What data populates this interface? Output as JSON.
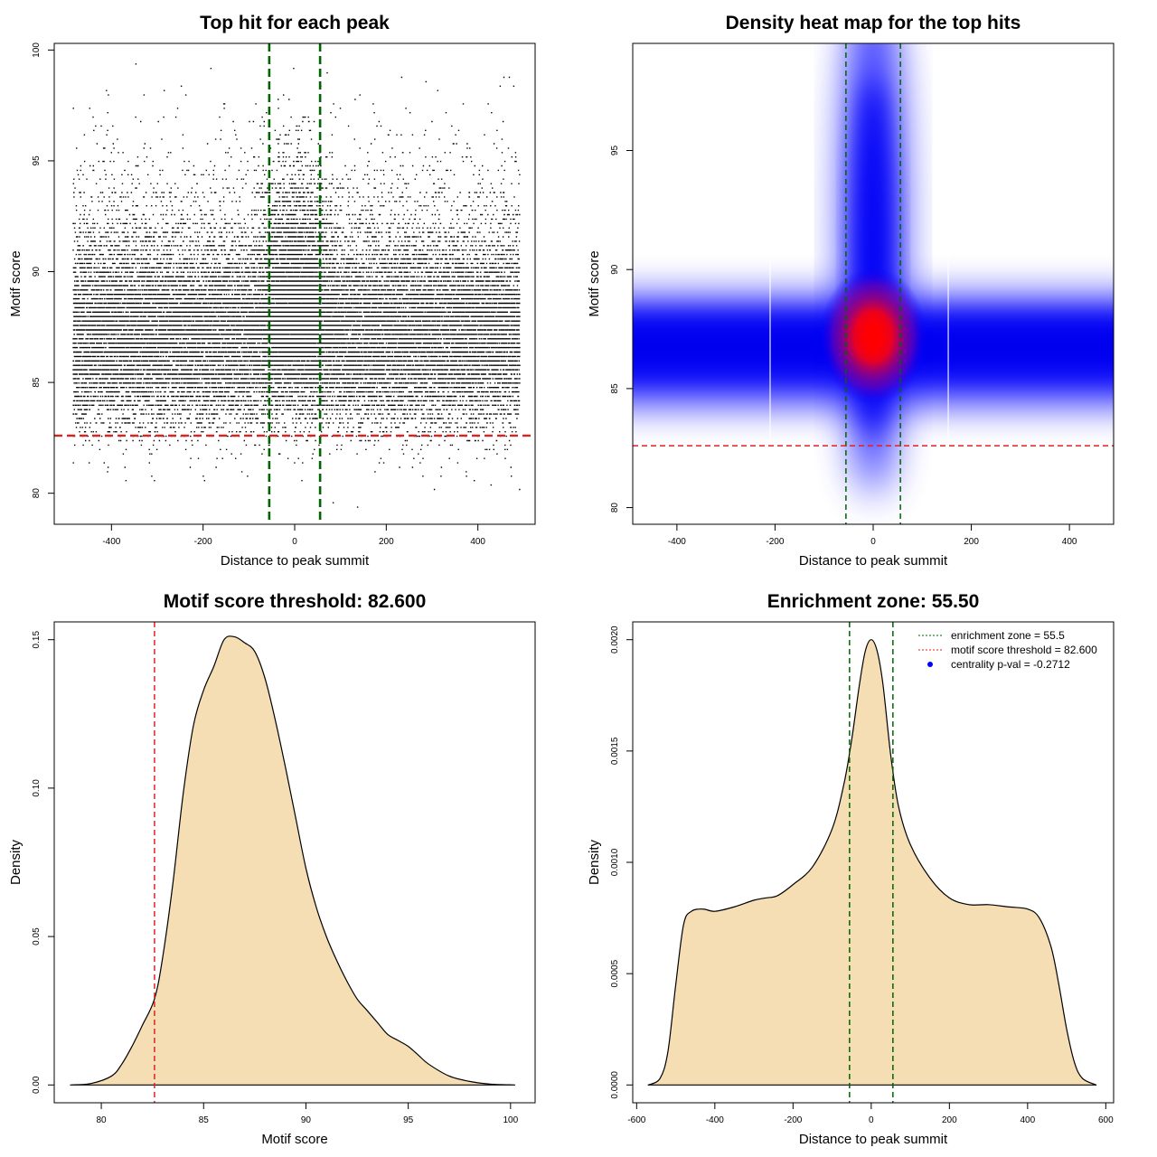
{
  "chart_data": [
    {
      "type": "scatter",
      "title": "Top hit for each peak",
      "xlabel": "Distance to peak summit",
      "ylabel": "Motif score",
      "xlim": [
        -525,
        525
      ],
      "ylim": [
        78.6,
        100.3
      ],
      "xticks": [
        -400,
        -200,
        0,
        200,
        400
      ],
      "yticks": [
        80,
        85,
        90,
        95,
        100
      ],
      "enrichment_zone": [
        -55.5,
        55.5
      ],
      "motif_threshold": 82.6,
      "points_approx": 30000,
      "colors": {
        "points": "#000000",
        "zone": "#006400",
        "threshold": "#dd2222"
      }
    },
    {
      "type": "heatmap",
      "title": "Density heat map for the top hits",
      "xlabel": "Distance to peak summit",
      "ylabel": "Motif score",
      "xlim": [
        -490,
        490
      ],
      "ylim": [
        79.3,
        99.5
      ],
      "xticks": [
        -400,
        -200,
        0,
        200,
        400
      ],
      "yticks": [
        80,
        85,
        90,
        95
      ],
      "enrichment_zone": [
        -55.5,
        55.5
      ],
      "motif_threshold": 82.6,
      "peak": {
        "x": 0,
        "y": 87.2
      },
      "colors": {
        "low": "#ffffff",
        "mid": "#0000ff",
        "high": "#ff0000"
      }
    },
    {
      "type": "area",
      "title": "Motif score threshold: 82.600",
      "xlabel": "Motif score",
      "ylabel": "Density",
      "xlim": [
        77.7,
        101.2
      ],
      "ylim": [
        -0.006,
        0.156
      ],
      "xticks": [
        80,
        85,
        90,
        95,
        100
      ],
      "yticks": [
        0.0,
        0.05,
        0.1,
        0.15
      ],
      "ytick_labels": [
        "0.00",
        "0.05",
        "0.10",
        "0.15"
      ],
      "threshold": 82.6,
      "x": [
        78.5,
        79.5,
        80.5,
        81.0,
        81.5,
        82.0,
        82.6,
        83.0,
        83.5,
        84.0,
        84.5,
        85.0,
        85.5,
        86.0,
        86.5,
        87.0,
        87.5,
        88.0,
        88.5,
        89.0,
        89.5,
        90.0,
        90.5,
        91.0,
        91.5,
        92.0,
        92.5,
        93.0,
        93.5,
        94.0,
        94.5,
        95.0,
        95.5,
        96.0,
        97.0,
        98.0,
        99.0,
        100.2
      ],
      "values": [
        0.0,
        0.0005,
        0.003,
        0.007,
        0.013,
        0.02,
        0.029,
        0.043,
        0.068,
        0.098,
        0.121,
        0.133,
        0.141,
        0.15,
        0.151,
        0.149,
        0.146,
        0.137,
        0.123,
        0.107,
        0.09,
        0.073,
        0.06,
        0.05,
        0.042,
        0.035,
        0.029,
        0.025,
        0.021,
        0.017,
        0.015,
        0.013,
        0.01,
        0.007,
        0.003,
        0.0012,
        0.0003,
        0.0
      ],
      "colors": {
        "fill": "#f5deb3",
        "line": "#000000",
        "threshold": "#dd2222"
      }
    },
    {
      "type": "area",
      "title": "Enrichment zone: 55.50",
      "xlabel": "Distance to peak summit",
      "ylabel": "Density",
      "xlim": [
        -610,
        620
      ],
      "ylim": [
        -8e-05,
        0.00208
      ],
      "xticks": [
        -600,
        -400,
        -200,
        0,
        200,
        400,
        600
      ],
      "yticks": [
        0.0,
        0.0005,
        0.001,
        0.0015,
        0.002
      ],
      "ytick_labels": [
        "0.0000",
        "0.0005",
        "0.0010",
        "0.0015",
        "0.0020"
      ],
      "enrichment_zone": [
        -55.5,
        55.5
      ],
      "x": [
        -570,
        -540,
        -520,
        -500,
        -480,
        -460,
        -430,
        -400,
        -350,
        -300,
        -270,
        -240,
        -200,
        -150,
        -100,
        -70,
        -50,
        -30,
        -15,
        0,
        15,
        30,
        50,
        70,
        100,
        150,
        200,
        250,
        300,
        350,
        400,
        430,
        460,
        480,
        500,
        520,
        540,
        575
      ],
      "values": [
        0.0,
        3e-05,
        0.00015,
        0.00045,
        0.00072,
        0.00078,
        0.00079,
        0.00078,
        0.0008,
        0.00083,
        0.00084,
        0.00085,
        0.0009,
        0.00098,
        0.00115,
        0.00135,
        0.00155,
        0.0018,
        0.00195,
        0.002,
        0.00195,
        0.0018,
        0.00148,
        0.00125,
        0.00108,
        0.00093,
        0.00084,
        0.00081,
        0.00081,
        0.0008,
        0.00079,
        0.00075,
        0.00062,
        0.00045,
        0.00025,
        0.0001,
        3e-05,
        0.0
      ],
      "legend": [
        {
          "label": "enrichment zone = 55.5",
          "color": "#006400",
          "kind": "line"
        },
        {
          "label": "motif score threshold = 82.600",
          "color": "#dd2222",
          "kind": "line"
        },
        {
          "label": "centrality p-val = -0.2712",
          "color": "#0000ff",
          "kind": "point"
        }
      ],
      "colors": {
        "fill": "#f5deb3",
        "line": "#000000",
        "zone": "#006400"
      }
    }
  ]
}
